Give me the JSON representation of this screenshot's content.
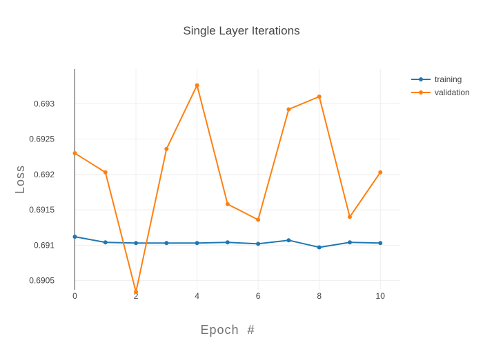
{
  "chart_data": {
    "type": "line",
    "title": "Single Layer Iterations",
    "xlabel": "Epoch  #",
    "ylabel": "Loss",
    "x": [
      0,
      1,
      2,
      3,
      4,
      5,
      6,
      7,
      8,
      9,
      10
    ],
    "xlim": [
      0,
      10.65
    ],
    "ylim": [
      0.69037,
      0.69349
    ],
    "x_ticks": [
      "0",
      "2",
      "4",
      "6",
      "8",
      "10"
    ],
    "x_tick_values": [
      0,
      2,
      4,
      6,
      8,
      10
    ],
    "y_ticks": [
      "0.6905",
      "0.691",
      "0.6915",
      "0.692",
      "0.6925",
      "0.693"
    ],
    "y_tick_values": [
      0.6905,
      0.691,
      0.6915,
      0.692,
      0.6925,
      0.693
    ],
    "grid": true,
    "legend_position": "top-right",
    "series": [
      {
        "name": "training",
        "color": "#1f77b4",
        "values": [
          0.69112,
          0.69104,
          0.69103,
          0.69103,
          0.69103,
          0.69104,
          0.69102,
          0.69107,
          0.69097,
          0.69104,
          0.69103
        ]
      },
      {
        "name": "validation",
        "color": "#ff7f0e",
        "values": [
          0.6923,
          0.69203,
          0.69034,
          0.69236,
          0.69326,
          0.69158,
          0.69136,
          0.69292,
          0.6931,
          0.6914,
          0.69203
        ]
      }
    ]
  }
}
